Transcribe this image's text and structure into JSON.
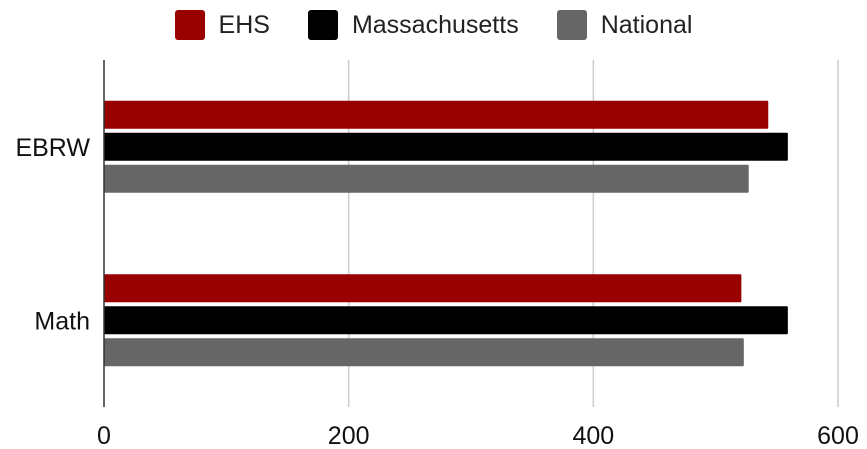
{
  "chart_data": {
    "type": "bar",
    "orientation": "horizontal",
    "categories": [
      "EBRW",
      "Math"
    ],
    "series": [
      {
        "name": "EHS",
        "values": [
          543,
          521
        ],
        "color": "#990000"
      },
      {
        "name": "Massachusetts",
        "values": [
          559,
          559
        ],
        "color": "#000000"
      },
      {
        "name": "National",
        "values": [
          527,
          523
        ],
        "color": "#666666"
      }
    ],
    "xlim": [
      0,
      600
    ],
    "xticks": [
      0,
      200,
      400,
      600
    ],
    "title": "",
    "xlabel": "",
    "ylabel": "",
    "grid": true,
    "legend_position": "top"
  }
}
